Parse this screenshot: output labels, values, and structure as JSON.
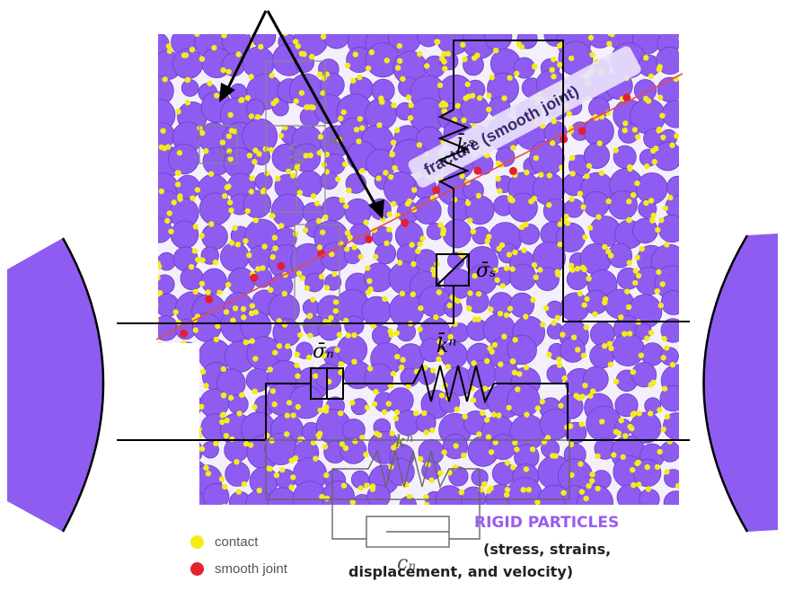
{
  "legend": [
    {
      "label": "contact",
      "color": "#f3ec1a"
    },
    {
      "label": "smooth joint",
      "color": "#e2202f"
    }
  ],
  "fracture_label": "fracture (smooth joint)",
  "captions": {
    "title": "RIGID PARTICLES",
    "line1": "(stress, strains,",
    "line2": "displacement, and velocity)"
  },
  "symbols": {
    "ks_bar": "k̄ˢ",
    "sigma_s": "σ̄ₛ",
    "sigma_n": "σ̄ₙ",
    "kn_bar": "k̄ⁿ",
    "kn": "kⁿ",
    "cn": "cₙ",
    "cs": "cₛ",
    "ks": "kˢ"
  },
  "colors": {
    "particle": "#8e5cf0",
    "particle_edge": "#6a3fc8",
    "contact": "#f3ec1a",
    "smooth_joint": "#e2202f",
    "title": "#9a5cf0"
  }
}
